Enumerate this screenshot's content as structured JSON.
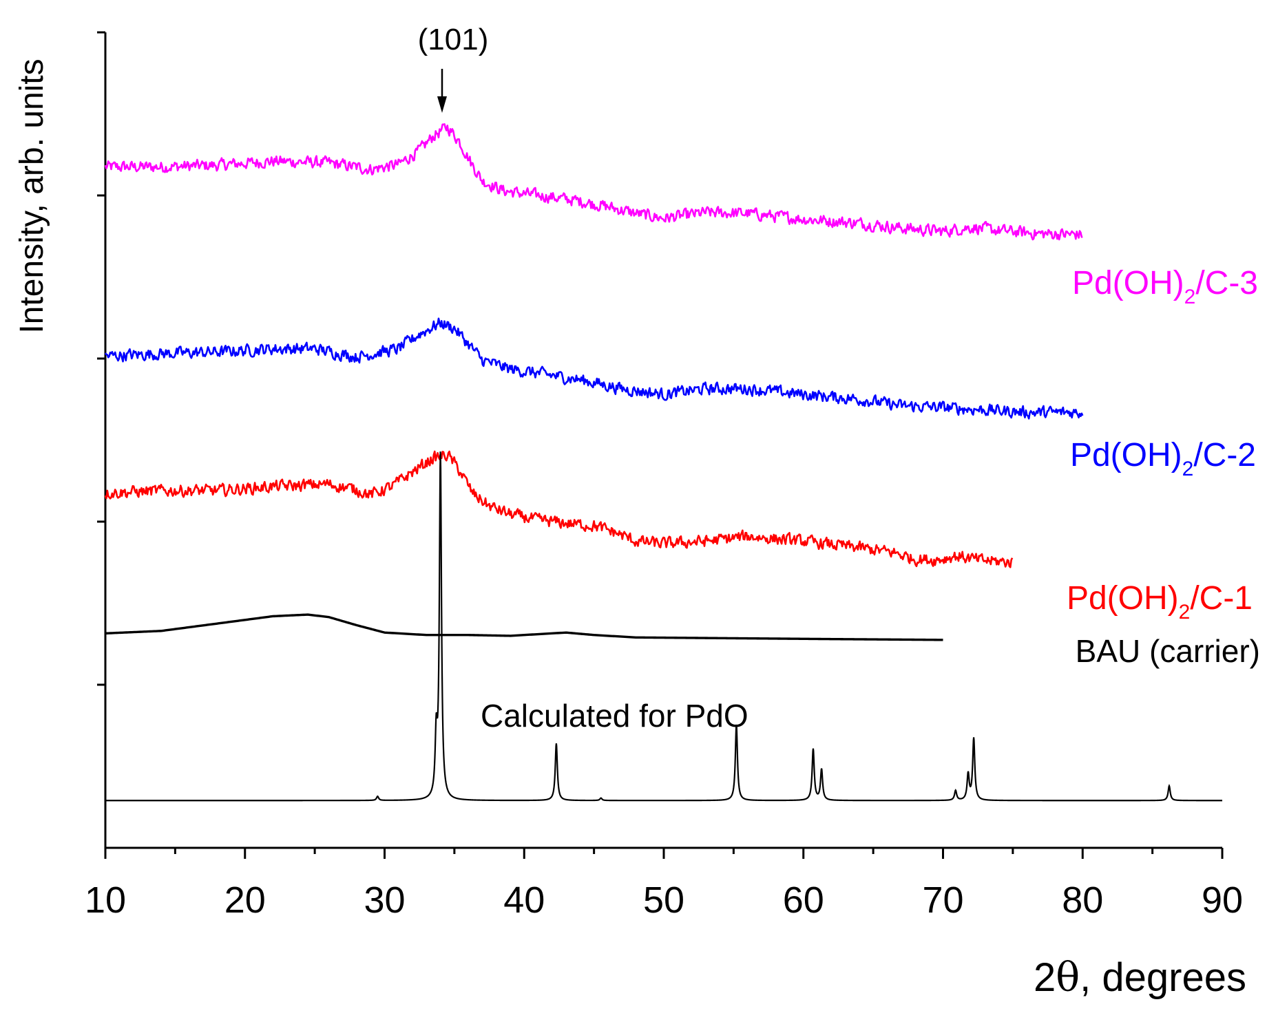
{
  "chart_data": {
    "type": "line",
    "title": "",
    "xlabel_prefix": "2",
    "xlabel_symbol": "θ",
    "xlabel_suffix": ", degrees",
    "ylabel": "Intensity, arb. units",
    "xlim": [
      10,
      90
    ],
    "x_ticks": [
      10,
      20,
      30,
      40,
      50,
      60,
      70,
      80,
      90
    ],
    "ylim": [
      0,
      100
    ],
    "y_major_ticks": [
      20,
      40,
      60,
      80,
      100
    ],
    "peak_annotation": {
      "label": "(101)",
      "x": 34
    },
    "series": [
      {
        "name": "Pd(OH)2/C-3",
        "label_main": "Pd(OH)",
        "label_sub": "2",
        "label_tail": "/C-3",
        "color": "#ff00ff",
        "x_end": 80,
        "noise": 0.65,
        "points": [
          [
            10,
            83.5
          ],
          [
            14,
            83.5
          ],
          [
            18,
            83.7
          ],
          [
            22,
            84.2
          ],
          [
            26,
            84.0
          ],
          [
            29,
            83.2
          ],
          [
            31,
            83.8
          ],
          [
            32.5,
            85.5
          ],
          [
            33.5,
            87.3
          ],
          [
            34.5,
            88.4
          ],
          [
            35.3,
            86.8
          ],
          [
            36.2,
            84.0
          ],
          [
            37,
            81.8
          ],
          [
            38.5,
            80.6
          ],
          [
            40,
            80.2
          ],
          [
            42,
            79.8
          ],
          [
            44,
            79.3
          ],
          [
            46,
            78.6
          ],
          [
            48,
            77.8
          ],
          [
            50,
            77.2
          ],
          [
            53,
            77.9
          ],
          [
            56,
            77.8
          ],
          [
            60,
            77.1
          ],
          [
            64,
            76.6
          ],
          [
            67,
            76.0
          ],
          [
            70,
            75.6
          ],
          [
            72,
            76.1
          ],
          [
            74,
            75.7
          ],
          [
            77,
            75.3
          ],
          [
            80,
            75.2
          ]
        ]
      },
      {
        "name": "Pd(OH)2/C-2",
        "label_main": "Pd(OH)",
        "label_sub": "2",
        "label_tail": "/C-2",
        "color": "#0000ff",
        "x_end": 80,
        "noise": 0.65,
        "points": [
          [
            10,
            60.3
          ],
          [
            14,
            60.6
          ],
          [
            18,
            60.8
          ],
          [
            22,
            61.2
          ],
          [
            25,
            61.2
          ],
          [
            28,
            60.2
          ],
          [
            31,
            61.2
          ],
          [
            32.5,
            63.0
          ],
          [
            34,
            64.4
          ],
          [
            35,
            63.7
          ],
          [
            36,
            61.8
          ],
          [
            37,
            59.8
          ],
          [
            39,
            58.7
          ],
          [
            41,
            58.2
          ],
          [
            44,
            57.4
          ],
          [
            47,
            56.3
          ],
          [
            50,
            55.6
          ],
          [
            53,
            56.3
          ],
          [
            56,
            56.3
          ],
          [
            60,
            55.6
          ],
          [
            64,
            55.0
          ],
          [
            67,
            54.2
          ],
          [
            70,
            54.0
          ],
          [
            72,
            53.8
          ],
          [
            76,
            53.4
          ],
          [
            80,
            53.4
          ]
        ]
      },
      {
        "name": "Pd(OH)2/C-1",
        "label_main": "Pd(OH)",
        "label_sub": "2",
        "label_tail": "/C-1",
        "color": "#ff0000",
        "x_end": 75,
        "noise": 0.65,
        "points": [
          [
            10,
            43.5
          ],
          [
            14,
            43.8
          ],
          [
            18,
            43.8
          ],
          [
            22,
            44.3
          ],
          [
            26,
            44.6
          ],
          [
            28,
            43.9
          ],
          [
            29,
            43.3
          ],
          [
            30.5,
            44.3
          ],
          [
            32,
            46.1
          ],
          [
            33.5,
            47.8
          ],
          [
            34.5,
            48.2
          ],
          [
            35.3,
            46.5
          ],
          [
            36.3,
            43.5
          ],
          [
            37.5,
            41.9
          ],
          [
            39,
            40.9
          ],
          [
            41,
            40.2
          ],
          [
            43,
            39.8
          ],
          [
            45,
            39.5
          ],
          [
            46.5,
            38.7
          ],
          [
            48,
            37.6
          ],
          [
            50,
            37.3
          ],
          [
            53,
            37.6
          ],
          [
            56,
            38.2
          ],
          [
            60,
            37.6
          ],
          [
            64,
            36.8
          ],
          [
            66.5,
            36.2
          ],
          [
            68,
            35.4
          ],
          [
            69.5,
            35.3
          ],
          [
            71,
            35.8
          ],
          [
            72.5,
            35.3
          ],
          [
            75,
            35.0
          ]
        ]
      },
      {
        "name": "BAU (carrier)",
        "label_main": "BAU (carrier)",
        "color": "#000000",
        "x_end": 70,
        "noise": 0,
        "points": [
          [
            10,
            26.3
          ],
          [
            14,
            26.6
          ],
          [
            18,
            27.5
          ],
          [
            22,
            28.4
          ],
          [
            24.5,
            28.6
          ],
          [
            26,
            28.3
          ],
          [
            28,
            27.3
          ],
          [
            30,
            26.4
          ],
          [
            33,
            26.1
          ],
          [
            36,
            26.1
          ],
          [
            39,
            26.0
          ],
          [
            41,
            26.2
          ],
          [
            43,
            26.4
          ],
          [
            45,
            26.1
          ],
          [
            48,
            25.8
          ],
          [
            55,
            25.7
          ],
          [
            62,
            25.6
          ],
          [
            70,
            25.5
          ]
        ]
      },
      {
        "name": "Calculated for PdO",
        "label_main": "Calculated for PdO",
        "color": "#000000",
        "baseline": 5.8,
        "peaks": [
          [
            29.5,
            0.5
          ],
          [
            33.7,
            7.2
          ],
          [
            34.0,
            42.2
          ],
          [
            42.3,
            7.0
          ],
          [
            45.5,
            0.3
          ],
          [
            55.2,
            9.3
          ],
          [
            60.7,
            6.3
          ],
          [
            61.3,
            3.8
          ],
          [
            70.9,
            1.2
          ],
          [
            71.8,
            3.2
          ],
          [
            72.2,
            7.6
          ],
          [
            86.2,
            1.8
          ]
        ]
      }
    ]
  }
}
